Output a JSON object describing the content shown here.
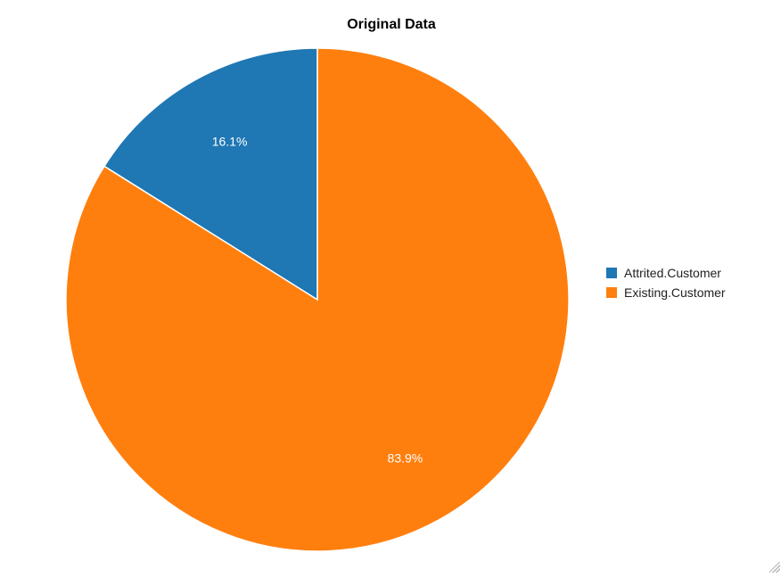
{
  "chart_data": {
    "type": "pie",
    "title": "Original Data",
    "slices": [
      {
        "label": "Attrited.Customer",
        "value": 16.1,
        "display": "16.1%",
        "color": "#1f77b4"
      },
      {
        "label": "Existing.Customer",
        "value": 83.9,
        "display": "83.9%",
        "color": "#ff7f0e"
      }
    ],
    "start_angle": "12 o'clock",
    "direction": "counter-clockwise",
    "legend": {
      "placement": "right",
      "entries": [
        "Attrited.Customer",
        "Existing.Customer"
      ]
    },
    "grid": false
  },
  "colors": {
    "attrited": "#1f77b4",
    "existing": "#ff7f0e",
    "background": "#ffffff",
    "slice_border": "#ffffff"
  },
  "icons": {
    "resize_handle": "resize-grip-icon"
  }
}
